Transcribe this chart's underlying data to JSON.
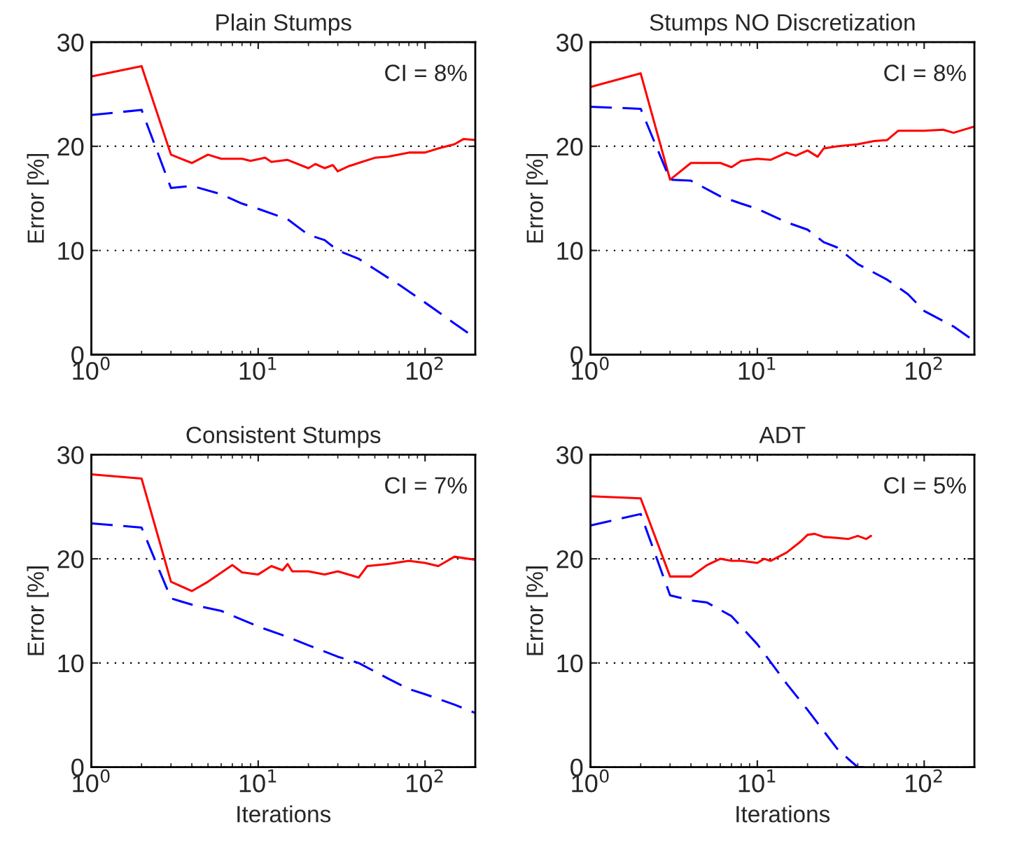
{
  "chart_data": [
    {
      "type": "line",
      "title": "Plain Stumps",
      "ylabel": "Error [%]",
      "log": "x",
      "xlim": [
        1,
        200
      ],
      "ylim": [
        0,
        30
      ],
      "xticks": [
        {
          "value": 1,
          "label": "10$^{0}$"
        },
        {
          "value": 10,
          "label": "10$^{1}$"
        },
        {
          "value": 100,
          "label": "10$^{2}$"
        }
      ],
      "yticks": [
        0,
        10,
        20,
        30
      ],
      "grid": "y",
      "annotations": [
        "CI = 8%"
      ],
      "series": [
        {
          "color": "#ff0000",
          "line_style": "solid",
          "x": [
            1,
            2,
            3,
            4,
            5,
            6,
            8,
            9,
            11,
            12,
            15,
            20,
            22,
            25,
            28,
            30,
            35,
            40,
            50,
            60,
            80,
            100,
            120,
            150,
            170,
            200
          ],
          "values": [
            26.7,
            27.7,
            19.2,
            18.4,
            19.2,
            18.8,
            18.8,
            18.6,
            18.9,
            18.5,
            18.7,
            17.9,
            18.3,
            17.9,
            18.2,
            17.6,
            18.1,
            18.4,
            18.9,
            19.0,
            19.4,
            19.4,
            19.8,
            20.2,
            20.7,
            20.6
          ]
        },
        {
          "color": "#0000ff",
          "line_style": "dashed",
          "x": [
            1,
            2,
            3,
            4,
            6,
            8,
            10,
            15,
            20,
            25,
            30,
            40,
            50,
            70,
            100,
            150,
            200
          ],
          "values": [
            23.0,
            23.5,
            16.0,
            16.2,
            15.4,
            14.5,
            14.0,
            13.0,
            11.5,
            11.0,
            10.0,
            9.2,
            8.2,
            6.7,
            5.0,
            3.0,
            1.6
          ]
        }
      ]
    },
    {
      "type": "line",
      "title": "Stumps NO Discretization",
      "ylabel": "Error [%]",
      "log": "x",
      "xlim": [
        1,
        200
      ],
      "ylim": [
        0,
        30
      ],
      "xticks": [
        {
          "value": 1,
          "label": "10$^{0}$"
        },
        {
          "value": 10,
          "label": "10$^{1}$"
        },
        {
          "value": 100,
          "label": "10$^{2}$"
        }
      ],
      "yticks": [
        0,
        10,
        20,
        30
      ],
      "grid": "y",
      "annotations": [
        "CI = 8%"
      ],
      "series": [
        {
          "color": "#ff0000",
          "line_style": "solid",
          "x": [
            1,
            2,
            3,
            4,
            6,
            7,
            8,
            10,
            12,
            15,
            17,
            20,
            23,
            25,
            30,
            40,
            50,
            60,
            70,
            100,
            130,
            150,
            200
          ],
          "values": [
            25.7,
            27.0,
            16.8,
            18.4,
            18.4,
            18.0,
            18.6,
            18.8,
            18.7,
            19.4,
            19.1,
            19.6,
            19.0,
            19.8,
            20.0,
            20.2,
            20.5,
            20.6,
            21.5,
            21.5,
            21.6,
            21.3,
            21.9
          ]
        },
        {
          "color": "#0000ff",
          "line_style": "dashed",
          "x": [
            1,
            2,
            3,
            4,
            6,
            8,
            10,
            15,
            20,
            25,
            30,
            40,
            60,
            80,
            100,
            150,
            200
          ],
          "values": [
            23.8,
            23.6,
            16.8,
            16.7,
            15.2,
            14.5,
            14.0,
            12.7,
            12.0,
            10.8,
            10.3,
            8.7,
            7.2,
            5.8,
            4.2,
            2.7,
            1.3
          ]
        }
      ]
    },
    {
      "type": "line",
      "title": "Consistent Stumps",
      "xlabel": "Iterations",
      "ylabel": "Error [%]",
      "log": "x",
      "xlim": [
        1,
        200
      ],
      "ylim": [
        0,
        30
      ],
      "xticks": [
        {
          "value": 1,
          "label": "10$^{0}$"
        },
        {
          "value": 10,
          "label": "10$^{1}$"
        },
        {
          "value": 100,
          "label": "10$^{2}$"
        }
      ],
      "yticks": [
        0,
        10,
        20,
        30
      ],
      "grid": "y",
      "annotations": [
        "CI = 7%"
      ],
      "series": [
        {
          "color": "#ff0000",
          "line_style": "solid",
          "x": [
            1,
            2,
            3,
            4,
            5,
            7,
            8,
            10,
            12,
            14,
            15,
            16,
            20,
            25,
            30,
            40,
            45,
            60,
            80,
            100,
            120,
            150,
            200
          ],
          "values": [
            28.1,
            27.7,
            17.8,
            16.9,
            17.8,
            19.4,
            18.7,
            18.5,
            19.3,
            18.9,
            19.5,
            18.8,
            18.8,
            18.5,
            18.8,
            18.2,
            19.3,
            19.5,
            19.8,
            19.6,
            19.3,
            20.2,
            19.9
          ]
        },
        {
          "color": "#0000ff",
          "line_style": "dashed",
          "x": [
            1,
            2,
            3,
            4,
            6,
            10,
            15,
            20,
            30,
            40,
            60,
            80,
            100,
            150,
            200
          ],
          "values": [
            23.4,
            23.0,
            16.2,
            15.6,
            15.0,
            13.5,
            12.5,
            11.7,
            10.6,
            10.0,
            8.5,
            7.5,
            7.0,
            6.0,
            5.2
          ]
        }
      ]
    },
    {
      "type": "line",
      "title": "ADT",
      "xlabel": "Iterations",
      "ylabel": "Error [%]",
      "log": "x",
      "xlim": [
        1,
        200
      ],
      "ylim": [
        0,
        30
      ],
      "xticks": [
        {
          "value": 1,
          "label": "10$^{0}$"
        },
        {
          "value": 10,
          "label": "10$^{1}$"
        },
        {
          "value": 100,
          "label": "10$^{2}$"
        }
      ],
      "yticks": [
        0,
        10,
        20,
        30
      ],
      "grid": "y",
      "annotations": [
        "CI = 5%"
      ],
      "series": [
        {
          "color": "#ff0000",
          "line_style": "solid",
          "x": [
            1,
            2,
            3,
            4,
            5,
            6,
            7,
            8,
            10,
            11,
            12,
            15,
            18,
            20,
            22,
            25,
            30,
            35,
            40,
            45,
            48
          ],
          "values": [
            26.0,
            25.8,
            18.3,
            18.3,
            19.4,
            20.0,
            19.8,
            19.8,
            19.6,
            20.0,
            19.8,
            20.6,
            21.6,
            22.3,
            22.4,
            22.1,
            22.0,
            21.9,
            22.2,
            21.9,
            22.2
          ]
        },
        {
          "color": "#0000ff",
          "line_style": "dashed",
          "x": [
            1,
            2,
            3,
            4,
            5,
            7,
            10,
            15,
            20,
            30,
            35,
            40,
            48
          ],
          "values": [
            23.2,
            24.3,
            16.5,
            16.0,
            15.8,
            14.5,
            11.8,
            8.0,
            5.5,
            1.8,
            0.8,
            0,
            0
          ]
        }
      ]
    }
  ]
}
